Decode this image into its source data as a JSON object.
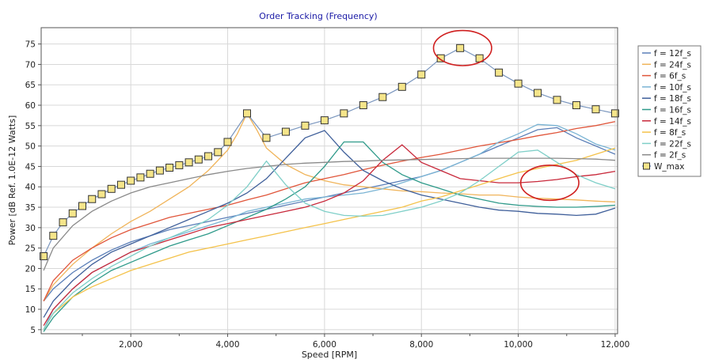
{
  "chart_data": {
    "type": "line",
    "title": "Order Tracking (Frequency)",
    "xlabel": "Speed [RPM]",
    "ylabel": "Power [dB Ref. 1.0E-12 Watts]",
    "xlim": [
      150,
      12050
    ],
    "ylim": [
      4,
      79
    ],
    "xticks": [
      2000,
      4000,
      6000,
      8000,
      10000,
      12000
    ],
    "xtick_labels": [
      "2,000",
      "4,000",
      "6,000",
      "8,000",
      "10,000",
      "12,000"
    ],
    "yticks": [
      5,
      10,
      15,
      20,
      25,
      30,
      35,
      40,
      45,
      50,
      55,
      60,
      65,
      70,
      75
    ],
    "grid": true,
    "legend_placement": "right",
    "series": [
      {
        "name": "f = 12f_s",
        "color": "#5b7fb8",
        "x": [
          200,
          400,
          800,
          1200,
          1600,
          2000,
          2400,
          2800,
          3200,
          3600,
          4000,
          4400,
          4800,
          5200,
          5600,
          6000,
          6400,
          6800,
          7200,
          7600,
          8000,
          8400,
          8800,
          9200,
          9600,
          10000,
          10400,
          10800,
          11200,
          11600,
          12000
        ],
        "y": [
          12,
          15,
          19,
          22,
          24.5,
          26.5,
          28,
          29.5,
          30.5,
          31.5,
          32.5,
          33.5,
          34.5,
          35.5,
          36.5,
          37.5,
          38.5,
          39.5,
          40.5,
          41.5,
          42.5,
          44,
          46,
          48,
          50,
          52,
          54,
          54.5,
          52,
          50,
          48
        ]
      },
      {
        "name": "f = 24f_s",
        "color": "#f0b45a",
        "x": [
          200,
          400,
          800,
          1200,
          1600,
          2000,
          2400,
          2800,
          3200,
          3600,
          4000,
          4200,
          4400,
          4600,
          4800,
          5200,
          5600,
          6000,
          6400,
          6800,
          7200,
          7600,
          8000,
          8400,
          8800,
          9200,
          9600,
          10000,
          10400,
          10800,
          11200,
          11600,
          12000
        ],
        "y": [
          12,
          16,
          21,
          25,
          28.5,
          31.5,
          34,
          37,
          40,
          44,
          49,
          53,
          58,
          54,
          49.5,
          45.5,
          43,
          41.5,
          40.5,
          40,
          39.5,
          39,
          38.8,
          38.5,
          38.3,
          38,
          38,
          37.5,
          37.2,
          37,
          36.8,
          36.5,
          36.3
        ]
      },
      {
        "name": "f = 6f_s",
        "color": "#e0553a",
        "x": [
          200,
          400,
          800,
          1200,
          1600,
          2000,
          2400,
          2800,
          3200,
          3600,
          4000,
          4400,
          4800,
          5200,
          5600,
          6000,
          6400,
          6800,
          7200,
          7600,
          8000,
          8400,
          8800,
          9200,
          9600,
          10000,
          10400,
          10800,
          11200,
          11600,
          12000
        ],
        "y": [
          12,
          17,
          22,
          25,
          27.5,
          29.5,
          31,
          32.5,
          33.5,
          34.5,
          35.5,
          36.8,
          38,
          39.5,
          41,
          42,
          43,
          44.2,
          45.3,
          46.3,
          47.2,
          48,
          49,
          50,
          50.8,
          51.6,
          52.5,
          53.3,
          54.3,
          55,
          56
        ]
      },
      {
        "name": "f = 10f_s",
        "color": "#7ab4d4",
        "x": [
          200,
          400,
          800,
          1200,
          1600,
          2000,
          2400,
          2800,
          3200,
          3600,
          4000,
          4400,
          4800,
          5200,
          5600,
          6000,
          6400,
          6800,
          7200,
          7600,
          8000,
          8400,
          8800,
          9200,
          9600,
          10000,
          10400,
          10800,
          11200,
          11600,
          12000
        ],
        "y": [
          5,
          10,
          15,
          19,
          21.5,
          24,
          26,
          27.5,
          29,
          30.5,
          32,
          34,
          35,
          36,
          37,
          37.5,
          38,
          38.5,
          39.5,
          41,
          42.5,
          44,
          46,
          48,
          51,
          53,
          55.3,
          55,
          53,
          50.5,
          49
        ]
      },
      {
        "name": "f = 18f_s",
        "color": "#3f5f9a",
        "x": [
          200,
          400,
          800,
          1200,
          1600,
          2000,
          2400,
          2800,
          3200,
          3600,
          4000,
          4400,
          4800,
          5200,
          5600,
          6000,
          6400,
          6800,
          7200,
          7600,
          8000,
          8400,
          8800,
          9200,
          9600,
          10000,
          10400,
          10800,
          11200,
          11600,
          12000
        ],
        "y": [
          8,
          12,
          17,
          21,
          24,
          26,
          28,
          30,
          32,
          34,
          36,
          38.5,
          42,
          47,
          52,
          53.8,
          48.5,
          44,
          41.5,
          39.5,
          38,
          37,
          36,
          35,
          34.3,
          34,
          33.5,
          33.3,
          33,
          33.3,
          34.8
        ]
      },
      {
        "name": "f = 16f_s",
        "color": "#2f9a8a",
        "x": [
          200,
          400,
          800,
          1200,
          1600,
          2000,
          2400,
          2800,
          3200,
          3600,
          4000,
          4400,
          4800,
          5200,
          5600,
          6000,
          6400,
          6800,
          7200,
          7600,
          8000,
          8400,
          8800,
          9200,
          9600,
          10000,
          10400,
          10800,
          11200,
          11600,
          12000
        ],
        "y": [
          4.5,
          8,
          13,
          16.5,
          19.5,
          21.5,
          23.5,
          25.5,
          27,
          28.5,
          30.5,
          32.5,
          34.5,
          37,
          40,
          45,
          51,
          51,
          46,
          43,
          41,
          39.5,
          38,
          37,
          36,
          35.5,
          35.2,
          35,
          35,
          35.2,
          35.5
        ]
      },
      {
        "name": "f = 14f_s",
        "color": "#c8283a",
        "x": [
          200,
          400,
          800,
          1200,
          1600,
          2000,
          2400,
          2800,
          3200,
          3600,
          4000,
          4400,
          4800,
          5200,
          5600,
          6000,
          6400,
          6800,
          7200,
          7600,
          8000,
          8400,
          8800,
          9200,
          9600,
          10000,
          10400,
          10800,
          11200,
          11600,
          12000
        ],
        "y": [
          6,
          10,
          15,
          19,
          21.5,
          24,
          25.5,
          27,
          28.5,
          30,
          31,
          32,
          33,
          34,
          35,
          36.5,
          38.5,
          41.5,
          46.5,
          50.3,
          46,
          44,
          42,
          41.5,
          41,
          41,
          41.3,
          41.8,
          42.5,
          43,
          43.8
        ]
      },
      {
        "name": "f = 8f_s",
        "color": "#f4c24a",
        "x": [
          200,
          400,
          800,
          1200,
          1600,
          2000,
          2400,
          2800,
          3200,
          3600,
          4000,
          4400,
          4800,
          5200,
          5600,
          6000,
          6400,
          6800,
          7200,
          7600,
          8000,
          8400,
          8800,
          9200,
          9600,
          10000,
          10400,
          10800,
          11200,
          11600,
          12000
        ],
        "y": [
          5,
          9,
          13,
          15.5,
          17.5,
          19.5,
          21,
          22.5,
          24,
          25,
          26,
          27,
          28,
          29,
          30,
          31,
          32,
          33,
          34,
          35,
          36.5,
          37.5,
          39,
          40.5,
          42,
          43.5,
          44.5,
          45.5,
          46.5,
          48,
          49.5
        ]
      },
      {
        "name": "f = 22f_s",
        "color": "#7fcfc8",
        "x": [
          200,
          400,
          800,
          1200,
          1600,
          2000,
          2400,
          2800,
          3200,
          3600,
          4000,
          4400,
          4800,
          5200,
          5600,
          6000,
          6400,
          6800,
          7200,
          7600,
          8000,
          8400,
          8800,
          9200,
          9600,
          10000,
          10400,
          10800,
          11200,
          11600,
          12000
        ],
        "y": [
          5,
          9,
          14,
          17.5,
          20.5,
          23,
          25.5,
          27.5,
          29.5,
          32,
          35.5,
          40,
          46.3,
          40.5,
          36,
          34,
          33,
          32.8,
          33,
          34,
          35,
          36.5,
          38.5,
          41.5,
          45,
          48.5,
          49,
          46,
          43,
          41,
          39.5
        ]
      },
      {
        "name": "f = 2f_s",
        "color": "#8a8a8a",
        "x": [
          200,
          400,
          800,
          1200,
          1600,
          2000,
          2400,
          2800,
          3200,
          3600,
          4000,
          4400,
          4800,
          5200,
          5600,
          6000,
          6400,
          6800,
          7200,
          7600,
          8000,
          8400,
          8800,
          9200,
          9600,
          10000,
          10400,
          10800,
          11200,
          11600,
          12000
        ],
        "y": [
          19.5,
          25,
          30.5,
          34,
          36.5,
          38.5,
          40,
          41,
          42,
          43,
          43.8,
          44.5,
          45,
          45.5,
          45.8,
          46,
          46.2,
          46.3,
          46.5,
          46.6,
          46.7,
          46.8,
          46.9,
          47,
          47,
          47,
          47,
          47,
          46.9,
          46.8,
          46.5
        ]
      },
      {
        "name": "W_max",
        "color": "#7a96be",
        "marker": "square",
        "marker_fill": "#f5e58a",
        "x": [
          200,
          400,
          600,
          800,
          1000,
          1200,
          1400,
          1600,
          1800,
          2000,
          2200,
          2400,
          2600,
          2800,
          3000,
          3200,
          3400,
          3600,
          3800,
          4000,
          4400,
          4800,
          5200,
          5600,
          6000,
          6400,
          6800,
          7200,
          7600,
          8000,
          8400,
          8800,
          9200,
          9600,
          10000,
          10400,
          10800,
          11200,
          11600,
          12000
        ],
        "y": [
          23,
          28,
          31.3,
          33.5,
          35.3,
          37,
          38.2,
          39.5,
          40.5,
          41.5,
          42.3,
          43.2,
          44,
          44.7,
          45.3,
          46,
          46.7,
          47.5,
          48.5,
          51,
          58,
          52,
          53.5,
          55,
          56.3,
          58,
          60,
          62,
          64.5,
          67.5,
          71.5,
          74,
          71.5,
          68,
          65.3,
          63,
          61.3,
          60,
          59,
          58
        ]
      }
    ]
  },
  "legend": {
    "items": [
      "f = 12f_s",
      "f = 24f_s",
      "f = 6f_s",
      "f = 10f_s",
      "f = 18f_s",
      "f = 16f_s",
      "f = 14f_s",
      "f = 8f_s",
      "f = 22f_s",
      "f = 2f_s",
      "W_max"
    ]
  },
  "annotations": [
    {
      "shape": "ellipse",
      "color": "#d02020",
      "cx": 8850,
      "cy": 74,
      "rx": 600,
      "ry": 4.3
    },
    {
      "shape": "ellipse",
      "color": "#d02020",
      "cx": 10650,
      "cy": 41,
      "rx": 600,
      "ry": 4.3
    }
  ],
  "colors": {
    "axis": "#555555",
    "grid": "#d8d8d8",
    "marker_fill": "#f5e58a",
    "annotation": "#d02020"
  }
}
